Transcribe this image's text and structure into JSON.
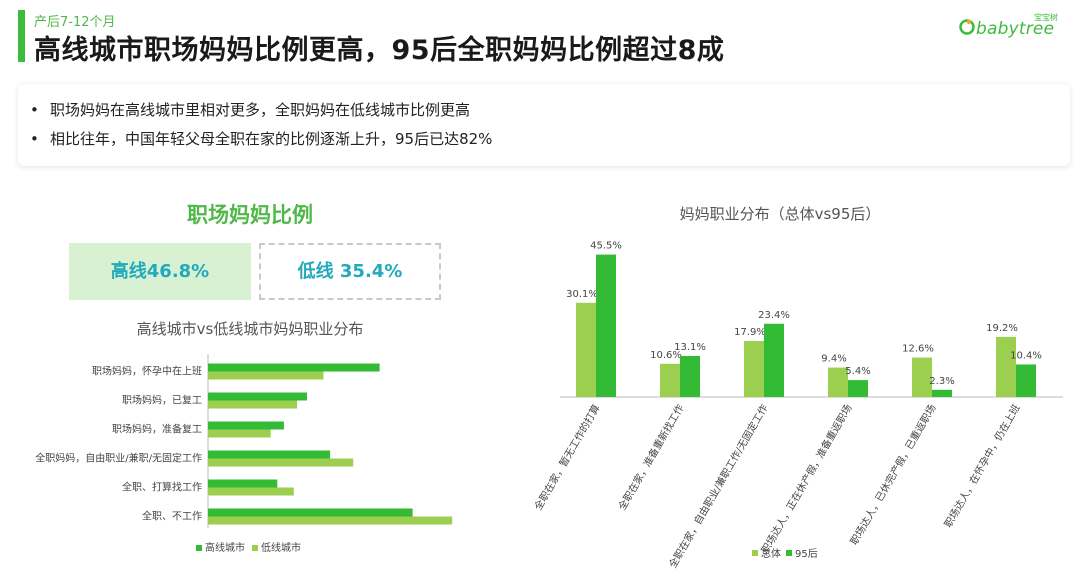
{
  "header": {
    "subtitle": "产后7-12个月",
    "title": "高线城市职场妈妈比例更高，95后全职妈妈比例超过8成",
    "logo_small": "宝宝树",
    "logo_text": "babytree"
  },
  "bullets": [
    "职场妈妈在高线城市里相对更多，全职妈妈在低线城市比例更高",
    "相比往年，中国年轻父母全职在家的比例逐渐上升，95后已达82%"
  ],
  "left_panel": {
    "heading": "职场妈妈比例",
    "high_box": "高线46.8%",
    "low_box": "低线 35.4%"
  },
  "colors": {
    "dark_green": "#33bb35",
    "light_green": "#9ccf4f",
    "teal": "#22a9bb"
  },
  "chart_data": [
    {
      "type": "bar",
      "orientation": "horizontal",
      "title": "高线城市vs低线城市妈妈职业分布",
      "categories": [
        "职场妈妈，怀孕中在上班",
        "职场妈妈，已复工",
        "职场妈妈，准备复工",
        "全职妈妈，自由职业/兼职/无固定工作",
        "全职、打算找工作",
        "全职、不工作"
      ],
      "series": [
        {
          "name": "高线城市",
          "values": [
            26,
            15,
            11.5,
            18.5,
            10.5,
            31
          ]
        },
        {
          "name": "低线城市",
          "values": [
            17.5,
            13.5,
            9.5,
            22,
            13,
            37
          ]
        }
      ],
      "legend": "bottom"
    },
    {
      "type": "bar",
      "title": "妈妈职业分布（总体vs95后）",
      "categories": [
        "全职在家，暂无工作的打算",
        "全职在家，准备重新找工作",
        "全职在家，自由职业/兼职工作/无固定工作",
        "职场达人，正在休产假，准备重返职场",
        "职场达人，已休完产假，已重返职场",
        "职场达人，在怀孕中，仍在上班"
      ],
      "series": [
        {
          "name": "总体",
          "values": [
            30.1,
            10.6,
            17.9,
            9.4,
            12.6,
            19.2
          ]
        },
        {
          "name": "95后",
          "values": [
            45.5,
            13.1,
            23.4,
            5.4,
            2.3,
            10.4
          ]
        }
      ],
      "legend": "bottom"
    }
  ]
}
